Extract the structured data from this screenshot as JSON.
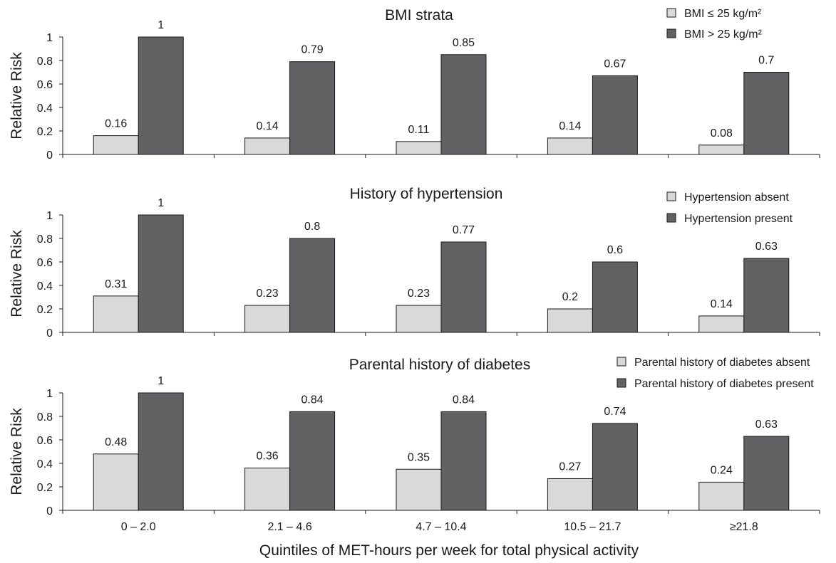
{
  "chart_data": {
    "type": "bar",
    "xlabel": "Quintiles of MET-hours per week for total physical activity",
    "categories": [
      "0 – 2.0",
      "2.1 – 4.6",
      "4.7 – 10.4",
      "10.5 – 21.7",
      "≥21.8"
    ],
    "colors": {
      "light": "#d9d9d9",
      "dark": "#626265",
      "axis": "#1a1a1a"
    },
    "panels": [
      {
        "title": "BMI strata",
        "ylabel": "Relative Risk",
        "ylim": [
          0,
          1
        ],
        "yticks": [
          "0",
          "0.2",
          "0.4",
          "0.6",
          "0.8",
          "1"
        ],
        "legend_position": "top-right",
        "series": [
          {
            "name": "BMI ≤ 25 kg/m²",
            "values": [
              0.16,
              0.14,
              0.11,
              0.14,
              0.08
            ],
            "labels": [
              "0.16",
              "0.14",
              "0.11",
              "0.14",
              "0.08"
            ]
          },
          {
            "name": "BMI > 25 kg/m²",
            "values": [
              1,
              0.79,
              0.85,
              0.67,
              0.7
            ],
            "labels": [
              "1",
              "0.79",
              "0.85",
              "0.67",
              "0.7"
            ]
          }
        ]
      },
      {
        "title": "History of hypertension",
        "ylabel": "Relative Risk",
        "ylim": [
          0,
          1
        ],
        "yticks": [
          "0",
          "0.2",
          "0.4",
          "0.6",
          "0.8",
          "1"
        ],
        "legend_position": "top-right",
        "series": [
          {
            "name": "Hypertension absent",
            "values": [
              0.31,
              0.23,
              0.23,
              0.2,
              0.14
            ],
            "labels": [
              "0.31",
              "0.23",
              "0.23",
              "0.2",
              "0.14"
            ]
          },
          {
            "name": "Hypertension present",
            "values": [
              1,
              0.8,
              0.77,
              0.6,
              0.63
            ],
            "labels": [
              "1",
              "0.8",
              "0.77",
              "0.6",
              "0.63"
            ]
          }
        ]
      },
      {
        "title": "Parental history of diabetes",
        "ylabel": "Relative Risk",
        "ylim": [
          0,
          1
        ],
        "yticks": [
          "0",
          "0.2",
          "0.4",
          "0.6",
          "0.8",
          "1"
        ],
        "legend_position": "top-right",
        "series": [
          {
            "name": "Parental history of diabetes absent",
            "values": [
              0.48,
              0.36,
              0.35,
              0.27,
              0.24
            ],
            "labels": [
              "0.48",
              "0.36",
              "0.35",
              "0.27",
              "0.24"
            ]
          },
          {
            "name": "Parental history of diabetes present",
            "values": [
              1,
              0.84,
              0.84,
              0.74,
              0.63
            ],
            "labels": [
              "1",
              "0.84",
              "0.84",
              "0.74",
              "0.63"
            ]
          }
        ]
      }
    ]
  }
}
